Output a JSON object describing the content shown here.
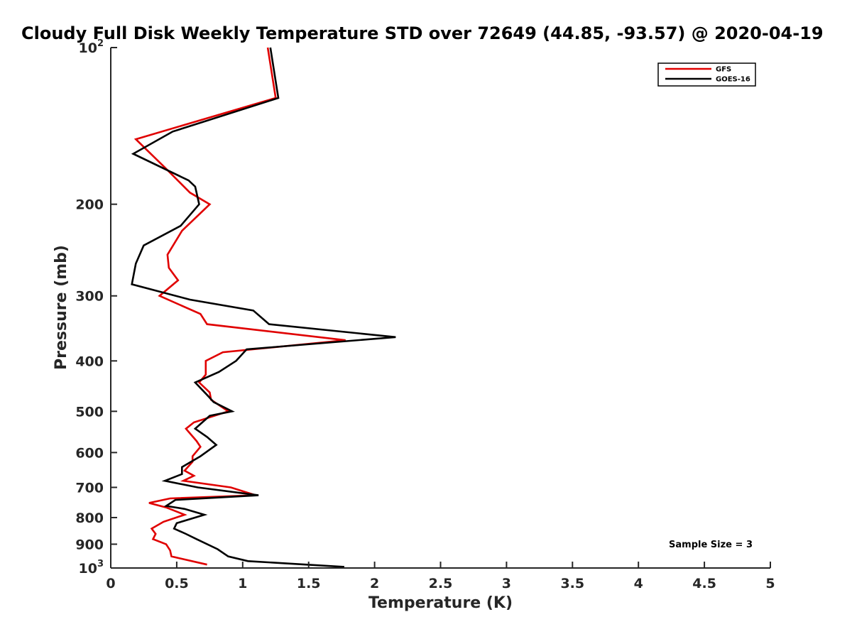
{
  "chart_data": {
    "type": "line",
    "title": "Cloudy Full Disk Weekly Temperature STD over 72649 (44.85, -93.57) @ 2020-04-19",
    "xlabel": "Temperature (K)",
    "ylabel": "Pressure (mb)",
    "xlim": [
      0,
      5
    ],
    "ylim": [
      100,
      1000
    ],
    "yscale": "log",
    "y_reversed": true,
    "x_ticks": [
      "0",
      "0.5",
      "1",
      "1.5",
      "2",
      "2.5",
      "3",
      "3.5",
      "4",
      "4.5",
      "5"
    ],
    "y_ticks": [
      {
        "value": 100,
        "base": "10",
        "exp": "2"
      },
      {
        "value": 200,
        "label": "200"
      },
      {
        "value": 300,
        "label": "300"
      },
      {
        "value": 400,
        "label": "400"
      },
      {
        "value": 500,
        "label": "500"
      },
      {
        "value": 600,
        "label": "600"
      },
      {
        "value": 700,
        "label": "700"
      },
      {
        "value": 800,
        "label": "800"
      },
      {
        "value": 900,
        "label": "900"
      },
      {
        "value": 1000,
        "base": "10",
        "exp": "3"
      }
    ],
    "grid": false,
    "legend_position": "top-right",
    "annotation": "Sample Size = 3",
    "series": [
      {
        "name": "GFS",
        "color": "#e00000",
        "points": [
          [
            1.19,
            100
          ],
          [
            1.25,
            125
          ],
          [
            0.19,
            150
          ],
          [
            0.41,
            170
          ],
          [
            0.6,
            190
          ],
          [
            0.75,
            200
          ],
          [
            0.54,
            225
          ],
          [
            0.43,
            250
          ],
          [
            0.44,
            265
          ],
          [
            0.51,
            280
          ],
          [
            0.37,
            300
          ],
          [
            0.68,
            325
          ],
          [
            0.73,
            340
          ],
          [
            1.78,
            365
          ],
          [
            0.85,
            385
          ],
          [
            0.72,
            400
          ],
          [
            0.72,
            425
          ],
          [
            0.67,
            440
          ],
          [
            0.75,
            460
          ],
          [
            0.76,
            475
          ],
          [
            0.89,
            500
          ],
          [
            0.63,
            525
          ],
          [
            0.57,
            540
          ],
          [
            0.65,
            570
          ],
          [
            0.68,
            585
          ],
          [
            0.62,
            610
          ],
          [
            0.62,
            625
          ],
          [
            0.56,
            650
          ],
          [
            0.63,
            665
          ],
          [
            0.55,
            680
          ],
          [
            0.91,
            700
          ],
          [
            1.1,
            725
          ],
          [
            0.45,
            735
          ],
          [
            0.29,
            750
          ],
          [
            0.42,
            765
          ],
          [
            0.56,
            790
          ],
          [
            0.4,
            815
          ],
          [
            0.31,
            840
          ],
          [
            0.34,
            860
          ],
          [
            0.32,
            880
          ],
          [
            0.42,
            900
          ],
          [
            0.45,
            925
          ],
          [
            0.46,
            950
          ],
          [
            0.73,
            985
          ]
        ]
      },
      {
        "name": "GOES-16",
        "color": "#000000",
        "points": [
          [
            1.21,
            100
          ],
          [
            1.27,
            125
          ],
          [
            0.47,
            145
          ],
          [
            0.17,
            160
          ],
          [
            0.59,
            180
          ],
          [
            0.64,
            185
          ],
          [
            0.67,
            200
          ],
          [
            0.53,
            220
          ],
          [
            0.25,
            240
          ],
          [
            0.19,
            260
          ],
          [
            0.16,
            285
          ],
          [
            0.6,
            305
          ],
          [
            1.08,
            320
          ],
          [
            1.2,
            340
          ],
          [
            2.16,
            360
          ],
          [
            1.03,
            380
          ],
          [
            0.95,
            400
          ],
          [
            0.82,
            420
          ],
          [
            0.64,
            440
          ],
          [
            0.73,
            465
          ],
          [
            0.78,
            480
          ],
          [
            0.92,
            500
          ],
          [
            0.75,
            510
          ],
          [
            0.64,
            540
          ],
          [
            0.73,
            560
          ],
          [
            0.8,
            580
          ],
          [
            0.68,
            610
          ],
          [
            0.54,
            640
          ],
          [
            0.54,
            660
          ],
          [
            0.41,
            680
          ],
          [
            0.66,
            700
          ],
          [
            1.12,
            725
          ],
          [
            0.49,
            740
          ],
          [
            0.42,
            760
          ],
          [
            0.56,
            770
          ],
          [
            0.71,
            790
          ],
          [
            0.5,
            820
          ],
          [
            0.48,
            840
          ],
          [
            0.57,
            860
          ],
          [
            0.65,
            880
          ],
          [
            0.81,
            920
          ],
          [
            0.89,
            950
          ],
          [
            1.04,
            970
          ],
          [
            1.77,
            995
          ]
        ]
      }
    ]
  }
}
